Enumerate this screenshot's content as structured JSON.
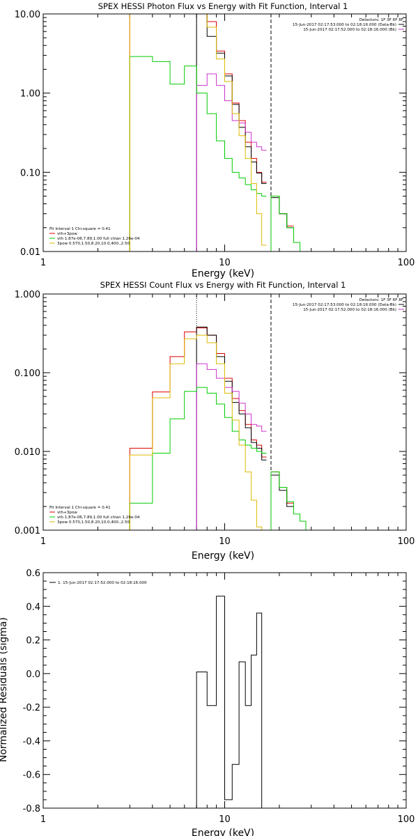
{
  "chart_data": [
    {
      "type": "line",
      "title": "SPEX HESSI Photon Flux vs Energy with Fit Function, Interval 1",
      "xlabel": "Energy (keV)",
      "ylabel": "",
      "xscale": "log",
      "yscale": "log",
      "xlim": [
        1,
        100
      ],
      "ylim": [
        0.01,
        10
      ],
      "xticks": [
        1,
        10,
        100
      ],
      "xtick_labels": [
        "1",
        "10",
        "100"
      ],
      "yticks": [
        0.01,
        0.1,
        1,
        10
      ],
      "ytick_labels": [
        "0.01",
        "0.10",
        "1.00",
        "10.00"
      ],
      "fit_range": [
        7.0,
        18.0
      ],
      "detectors": "Detectors: 1F 3F 6F 8F",
      "time_lines": [
        {
          "text": "15-Jun-2017 02:17:53.000 to 02:18:16.000 (Data-Bk)",
          "color": "#000000"
        },
        {
          "text": "15-Jun-2017 02:17:52.000 to 02:18:16.000 (Bk)",
          "color": "#cc33cc"
        }
      ],
      "fit_header": "Fit Interval 1    Chi-square = 0.41",
      "legend_items": [
        {
          "text": "vth+3pow",
          "color": "#dd0000"
        },
        {
          "text": "vth 1.87e-06,7.89,1.00  full chian 1.26e-04",
          "color": "#00cc00"
        },
        {
          "text": "3pow 0.570,1.50,8.20,10.0,400.,2.50",
          "color": "#ddbb00"
        }
      ],
      "edges": [
        3,
        4,
        5,
        6,
        7,
        8,
        9,
        10,
        11,
        12,
        13,
        14,
        15,
        16,
        17,
        18,
        20,
        22,
        24,
        26,
        28
      ],
      "series": [
        {
          "color": "#dd0000",
          "values": [
            10,
            10,
            10,
            10,
            10,
            8.0,
            3.4,
            1.75,
            0.75,
            0.45,
            0.24,
            0.15,
            0.1,
            0.075,
            null,
            0.05,
            0.03,
            0.021,
            null,
            null
          ]
        },
        {
          "color": "#000000",
          "values": [
            null,
            null,
            null,
            null,
            10,
            5.2,
            3.2,
            1.65,
            0.72,
            0.37,
            0.21,
            0.135,
            0.098,
            0.072,
            null,
            0.048,
            0.03,
            0.02,
            null,
            null
          ]
        },
        {
          "color": "#cc33cc",
          "values": [
            null,
            null,
            null,
            null,
            1.25,
            1.75,
            1.25,
            0.8,
            0.45,
            0.42,
            0.32,
            0.24,
            0.21,
            0.19,
            null,
            null,
            null,
            null,
            null,
            null
          ]
        },
        {
          "color": "#00cc00",
          "values": [
            2.9,
            2.5,
            1.3,
            2.2,
            1.0,
            0.55,
            0.25,
            0.15,
            0.1,
            0.085,
            0.07,
            0.06,
            0.054,
            0.05,
            null,
            0.05,
            0.03,
            0.02,
            0.013,
            0.01
          ]
        },
        {
          "color": "#ddbb00",
          "values": [
            10,
            10,
            10,
            10,
            10,
            6.8,
            2.7,
            1.4,
            0.55,
            0.29,
            0.15,
            0.072,
            0.03,
            0.012,
            null,
            null,
            null,
            null,
            null,
            null
          ]
        }
      ]
    },
    {
      "type": "line",
      "title": "SPEX HESSI Count Flux vs Energy with Fit Function, Interval 1",
      "xlabel": "Energy (keV)",
      "ylabel": "",
      "xscale": "log",
      "yscale": "log",
      "xlim": [
        1,
        100
      ],
      "ylim": [
        0.001,
        1
      ],
      "xticks": [
        1,
        10,
        100
      ],
      "xtick_labels": [
        "1",
        "10",
        "100"
      ],
      "yticks": [
        0.001,
        0.01,
        0.1,
        1
      ],
      "ytick_labels": [
        "0.001",
        "0.010",
        "0.100",
        "1.000"
      ],
      "fit_range": [
        7.0,
        18.0
      ],
      "detectors": "Detectors: 1F 3F 6F 8F",
      "time_lines": [
        {
          "text": "15-Jun-2017 02:17:53.000 to 02:18:16.000 (Data-Bk)",
          "color": "#000000"
        },
        {
          "text": "15-Jun-2017 02:17:52.000 to 02:18:16.000 (Bk)",
          "color": "#cc33cc"
        }
      ],
      "fit_header": "Fit Interval 1    Chi-square = 0.41",
      "legend_items": [
        {
          "text": "vth+3pow",
          "color": "#dd0000"
        },
        {
          "text": "vth 1.87e-06,7.89,1.00  full chian 1.26e-04",
          "color": "#00cc00"
        },
        {
          "text": "3pow 0.570,1.50,8.20,10.0,400.,2.50",
          "color": "#ddbb00"
        }
      ],
      "edges": [
        3,
        4,
        5,
        6,
        7,
        8,
        9,
        10,
        11,
        12,
        13,
        14,
        15,
        16,
        17,
        18,
        20,
        22,
        24,
        26,
        28,
        30
      ],
      "series": [
        {
          "color": "#dd0000",
          "values": [
            0.011,
            0.057,
            0.16,
            0.33,
            0.37,
            0.3,
            0.175,
            0.085,
            0.047,
            0.033,
            0.022,
            0.014,
            0.012,
            0.0085,
            null,
            0.0055,
            0.0035,
            0.0022,
            null,
            null,
            null
          ]
        },
        {
          "color": "#000000",
          "values": [
            null,
            null,
            null,
            null,
            0.38,
            0.3,
            0.16,
            0.078,
            0.042,
            0.03,
            0.02,
            0.013,
            0.011,
            0.0078,
            null,
            0.005,
            0.0032,
            0.002,
            null,
            null,
            null
          ]
        },
        {
          "color": "#cc33cc",
          "values": [
            null,
            null,
            null,
            null,
            0.13,
            0.11,
            0.085,
            0.065,
            0.058,
            0.041,
            0.03,
            0.022,
            0.021,
            0.018,
            null,
            null,
            null,
            null,
            null,
            null,
            null
          ]
        },
        {
          "color": "#00cc00",
          "values": [
            0.0022,
            0.0095,
            0.026,
            0.058,
            0.065,
            0.055,
            0.04,
            0.027,
            0.018,
            0.014,
            0.012,
            0.011,
            0.01,
            0.0095,
            null,
            0.0055,
            0.0035,
            0.0023,
            0.0016,
            0.0013,
            0.001
          ]
        },
        {
          "color": "#ddbb00",
          "values": [
            0.009,
            0.048,
            0.13,
            0.27,
            0.3,
            0.24,
            0.13,
            0.055,
            0.025,
            0.012,
            0.0055,
            0.0024,
            0.0011,
            0.001,
            null,
            null,
            null,
            null,
            null,
            null,
            null
          ]
        }
      ]
    },
    {
      "type": "line",
      "title": "",
      "xlabel": "Energy (keV)",
      "ylabel": "Normalized Residuals (sigma)",
      "xscale": "log",
      "yscale": "linear",
      "xlim": [
        1,
        100
      ],
      "ylim": [
        -0.8,
        0.6
      ],
      "xticks": [
        1,
        10,
        100
      ],
      "xtick_labels": [
        "1",
        "10",
        "100"
      ],
      "yticks": [
        -0.8,
        -0.6,
        -0.4,
        -0.2,
        0.0,
        0.2,
        0.4,
        0.6
      ],
      "ytick_labels": [
        "-0.8",
        "-0.6",
        "-0.4",
        "-0.2",
        "0.0",
        "0.2",
        "0.4",
        "0.6"
      ],
      "legend_items": [
        {
          "text": "1. 15-Jun-2017 02:17:52.000 to 02:18:16.000",
          "color": "#000000"
        }
      ],
      "edges": [
        7,
        8,
        9,
        10,
        11,
        12,
        13,
        14,
        15,
        16,
        17,
        18
      ],
      "series": [
        {
          "color": "#000000",
          "values": [
            0.01,
            -0.19,
            0.46,
            -0.75,
            -0.54,
            0.07,
            -0.19,
            0.11,
            0.36,
            null,
            null
          ]
        }
      ]
    }
  ]
}
